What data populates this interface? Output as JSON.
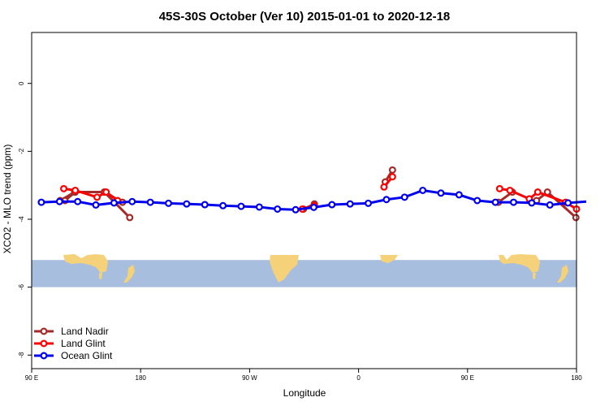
{
  "chart_data": {
    "type": "line",
    "title": "45S-30S October (Ver 10)   2015-01-01 to 2020-12-18",
    "xlabel": "Longitude",
    "ylabel": "XCO2 - MLO trend (ppm)",
    "xlim": [
      90,
      540
    ],
    "ylim": [
      -8.4,
      1.5
    ],
    "x_ticks": [
      {
        "value": 90,
        "label": "90 E"
      },
      {
        "value": 180,
        "label": "180"
      },
      {
        "value": 270,
        "label": "90 W"
      },
      {
        "value": 360,
        "label": "0"
      },
      {
        "value": 450,
        "label": "90 E"
      },
      {
        "value": 540,
        "label": "180"
      }
    ],
    "y_ticks": [
      {
        "value": 0,
        "label": "0"
      },
      {
        "value": -2,
        "label": "-2"
      },
      {
        "value": -4,
        "label": "-4"
      },
      {
        "value": -6,
        "label": "-6"
      },
      {
        "value": -8,
        "label": "-8"
      }
    ],
    "map_band": {
      "y_top": -5.2,
      "y_bottom": -6.0,
      "ocean_color": "#a8bede",
      "land_color": "#f5d27a"
    },
    "legend_position": "bottom-left",
    "series": [
      {
        "name": "Land Nadir",
        "color": "#a52a2a",
        "segments": [
          [
            [
              117.5,
              -3.45
            ],
            [
              126,
              -3.2
            ],
            [
              150,
              -3.2
            ],
            [
              171,
              -3.95
            ]
          ],
          [
            [
              113.5,
              -3.45
            ],
            [
              125.5,
              -3.2
            ]
          ],
          [
            [
              165,
              -3.5
            ],
            [
              150,
              -3.2
            ]
          ],
          [
            [
              314.5,
              -3.7
            ],
            [
              323.5,
              -3.55
            ]
          ],
          [
            [
              382,
              -2.9
            ],
            [
              388,
              -2.55
            ]
          ],
          [
            [
              475.5,
              -3.5
            ],
            [
              487,
              -3.2
            ]
          ],
          [
            [
              507,
              -3.45
            ],
            [
              516,
              -3.2
            ],
            [
              539.5,
              -3.95
            ]
          ]
        ]
      },
      {
        "name": "Land Glint",
        "color": "#ff0000",
        "segments": [
          [
            [
              116.5,
              -3.1
            ],
            [
              126,
              -3.15
            ],
            [
              144,
              -3.35
            ],
            [
              151.5,
              -3.2
            ],
            [
              161,
              -3.45
            ]
          ],
          [
            [
              313.5,
              -3.7
            ],
            [
              323.5,
              -3.6
            ]
          ],
          [
            [
              381,
              -3.05
            ],
            [
              388,
              -2.75
            ]
          ],
          [
            [
              476.5,
              -3.1
            ],
            [
              485,
              -3.15
            ],
            [
              501,
              -3.4
            ],
            [
              508,
              -3.2
            ],
            [
              531,
              -3.5
            ],
            [
              540,
              -3.7
            ]
          ]
        ]
      },
      {
        "name": "Ocean Glint",
        "color": "#0000ee",
        "segments": [
          [
            [
              98,
              -3.5
            ],
            [
              113,
              -3.48
            ],
            [
              128,
              -3.48
            ],
            [
              143,
              -3.58
            ],
            [
              158,
              -3.52
            ],
            [
              173,
              -3.48
            ],
            [
              188,
              -3.5
            ],
            [
              203,
              -3.53
            ],
            [
              218,
              -3.55
            ],
            [
              233,
              -3.57
            ],
            [
              248,
              -3.6
            ],
            [
              263,
              -3.62
            ],
            [
              278,
              -3.64
            ],
            [
              293,
              -3.7
            ],
            [
              308,
              -3.72
            ],
            [
              323,
              -3.65
            ],
            [
              338,
              -3.57
            ],
            [
              353,
              -3.55
            ],
            [
              368,
              -3.53
            ],
            [
              383,
              -3.42
            ],
            [
              398,
              -3.35
            ],
            [
              413,
              -3.15
            ],
            [
              428,
              -3.23
            ],
            [
              443,
              -3.28
            ],
            [
              458,
              -3.45
            ],
            [
              473,
              -3.5
            ],
            [
              488,
              -3.5
            ],
            [
              503,
              -3.52
            ],
            [
              518,
              -3.58
            ],
            [
              533,
              -3.52
            ],
            [
              548,
              -3.48
            ]
          ]
        ]
      }
    ]
  }
}
